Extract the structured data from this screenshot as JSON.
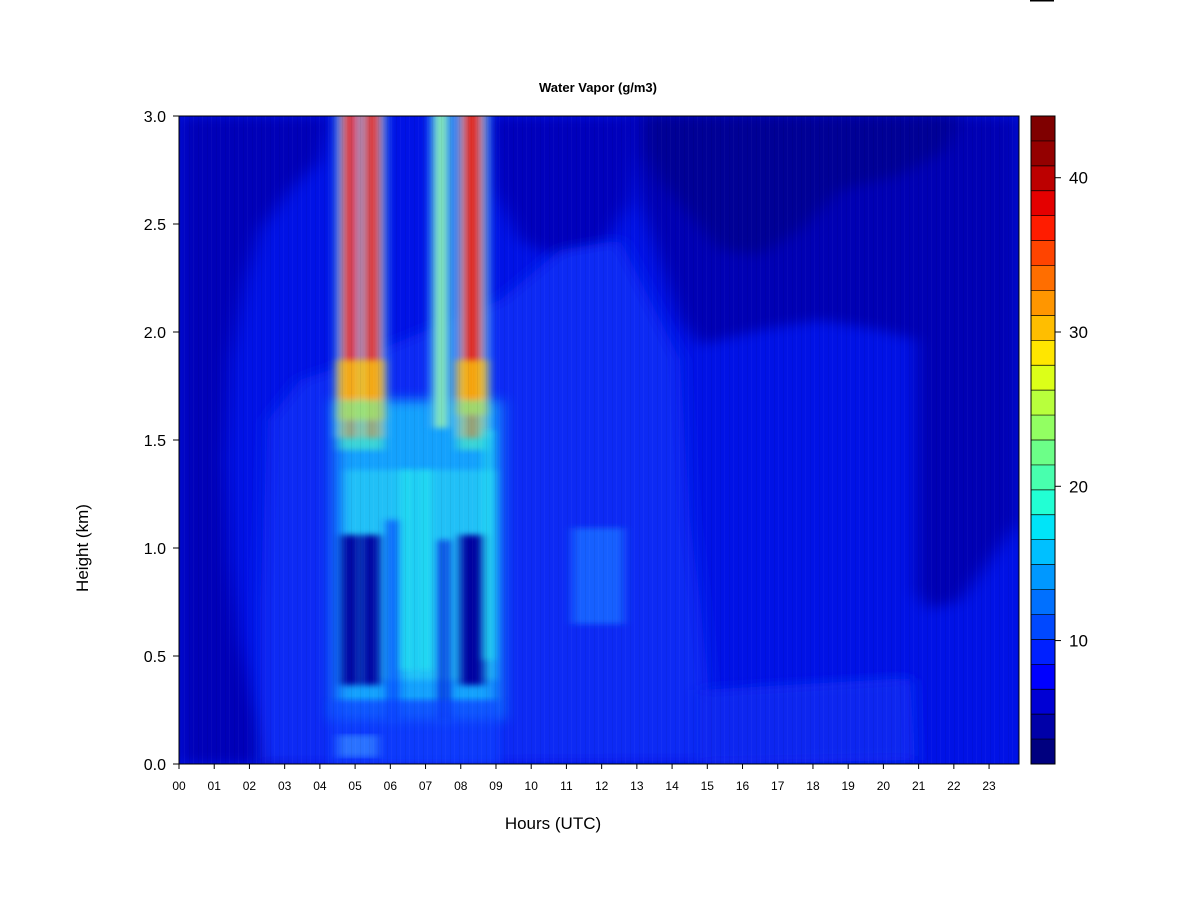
{
  "chart_data": {
    "type": "heatmap",
    "title": "Water Vapor (g/m3)",
    "xlabel": "Hours (UTC)",
    "ylabel": "Height (km)",
    "xlim": [
      0,
      23.85
    ],
    "ylim": [
      0,
      3.0
    ],
    "x_ticks": [
      "00",
      "01",
      "02",
      "03",
      "04",
      "05",
      "06",
      "07",
      "08",
      "09",
      "10",
      "11",
      "12",
      "13",
      "14",
      "15",
      "16",
      "17",
      "18",
      "19",
      "20",
      "21",
      "22",
      "23"
    ],
    "y_ticks": [
      "0.0",
      "0.5",
      "1.0",
      "1.5",
      "2.0",
      "2.5",
      "3.0"
    ],
    "colorbar": {
      "levels": [
        2,
        4,
        6,
        8,
        10,
        12,
        14,
        16,
        18,
        20,
        22,
        24,
        26,
        28,
        30,
        32,
        34,
        36,
        38,
        40,
        42,
        44
      ],
      "tick_values": [
        10,
        20,
        30,
        40
      ],
      "tick_labels": [
        "10",
        "20",
        "30",
        "40"
      ],
      "colors": [
        "#00007f",
        "#0000a8",
        "#0000d4",
        "#0000ff",
        "#0020ff",
        "#0048ff",
        "#0070ff",
        "#0098ff",
        "#00c0ff",
        "#00e4f8",
        "#22ffd4",
        "#48ffae",
        "#6cff88",
        "#92ff62",
        "#b8ff3c",
        "#dcff18",
        "#ffe600",
        "#ffbe00",
        "#ff9600",
        "#ff6e00",
        "#ff4400",
        "#ff1c00",
        "#e40000",
        "#bc0000",
        "#940000",
        "#7f0000"
      ]
    },
    "grid": false,
    "legend": "colorbar-right",
    "humidity_events": [
      {
        "time_range_utc": [
          "04:35",
          "05:50"
        ],
        "peak_value": 44,
        "layer_km": [
          1.7,
          3.0
        ]
      },
      {
        "time_range_utc": [
          "07:15",
          "07:40"
        ],
        "peak_value": 28,
        "layer_km": [
          1.5,
          3.0
        ]
      },
      {
        "time_range_utc": [
          "07:45",
          "08:40"
        ],
        "peak_value": 44,
        "layer_km": [
          1.7,
          3.0
        ]
      }
    ],
    "background_value_range": [
      3,
      12
    ]
  }
}
